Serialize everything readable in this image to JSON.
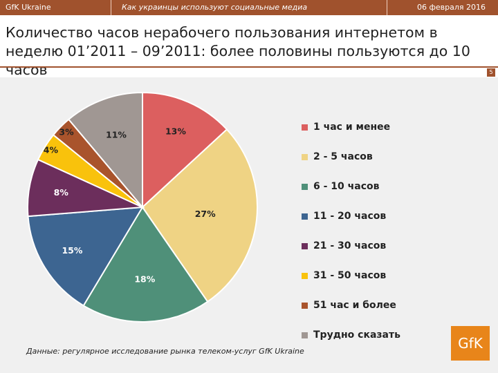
{
  "header": {
    "brand": "GfK Ukraine",
    "subtitle": "Как украинцы используют социальные медиа",
    "date": "06 февраля 2016"
  },
  "title": "Количество часов нерабочего пользования интернетом в неделю 01’2011 – 09’2011: более половины пользуются до 10 часов",
  "page_number": "5",
  "source": "Данные: регулярное исследование рынка телеком-услуг GfK Ukraine",
  "logo_text": "GfK",
  "chart_data": {
    "type": "pie",
    "title": "Количество часов нерабочего пользования интернетом в неделю 01’2011 – 09’2011",
    "categories": [
      "1 час и менее",
      "2 - 5 часов",
      "6 - 10 часов",
      "11 - 20 часов",
      "21 - 30 часов",
      "31 - 50 часов",
      "51 час и более",
      "Трудно сказать"
    ],
    "values": [
      13,
      27,
      18,
      15,
      8,
      4,
      3,
      11
    ],
    "labels": [
      "13%",
      "27%",
      "18%",
      "15%",
      "8%",
      "4%",
      "3%",
      "11%"
    ],
    "colors": [
      "#dc5f5f",
      "#efd384",
      "#4f9079",
      "#3d6591",
      "#6c2e5c",
      "#f9c20c",
      "#a9542c",
      "#a09793"
    ],
    "unit": "%",
    "legend": "right"
  }
}
